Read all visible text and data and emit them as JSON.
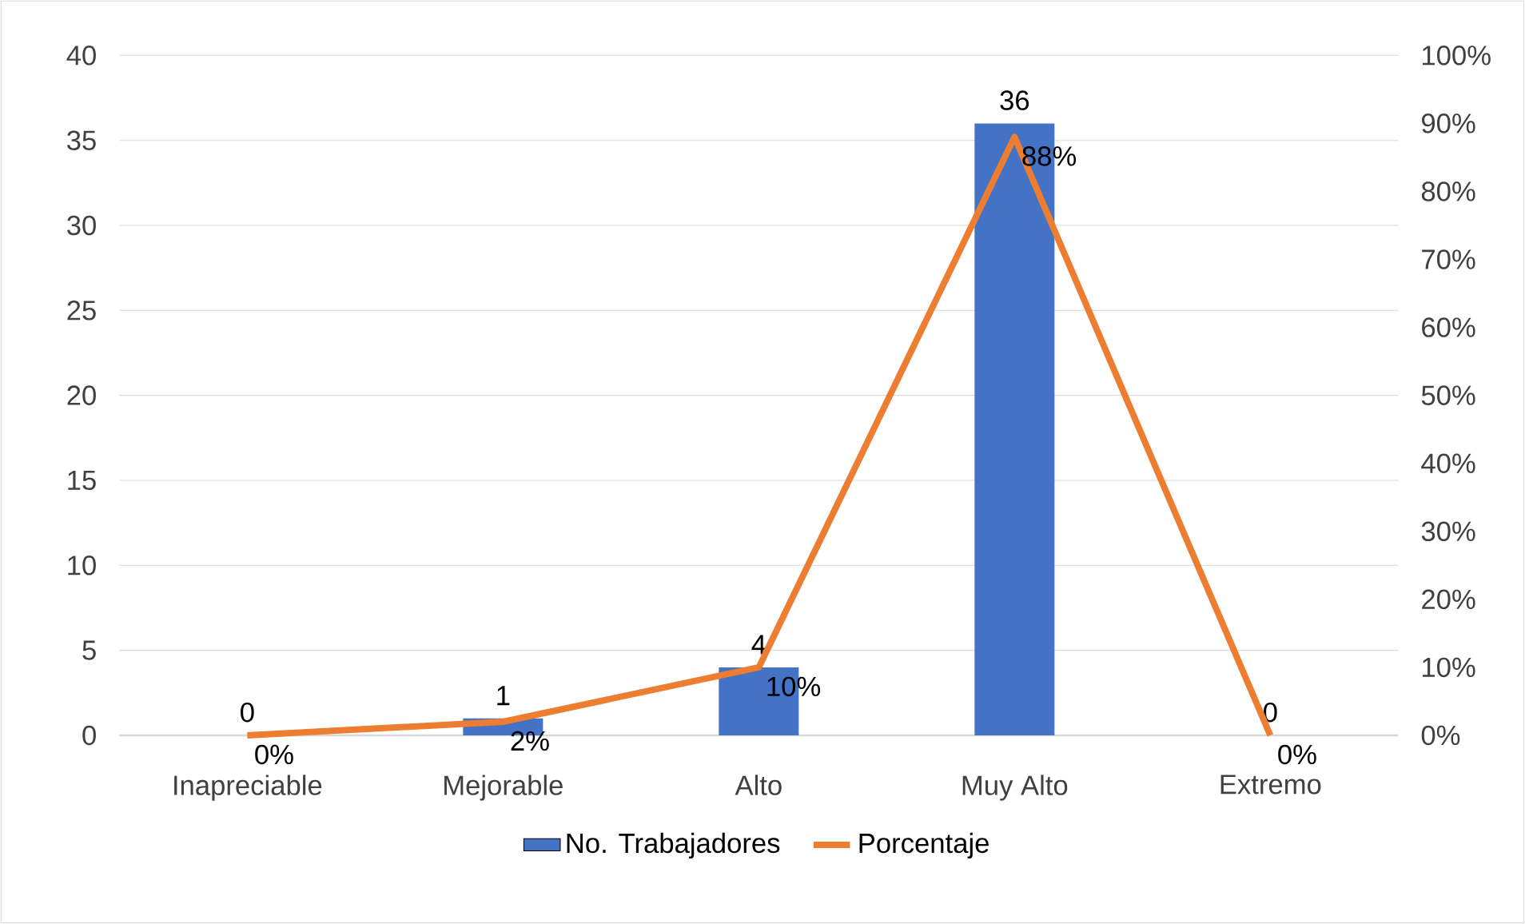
{
  "chart_data": {
    "type": "bar",
    "categories": [
      "Inapreciable",
      "Mejorable",
      "Alto",
      "Muy Alto",
      "Extremo"
    ],
    "series": [
      {
        "name": "No. Trabajadores",
        "color": "#4472c4",
        "values": [
          0,
          1,
          4,
          36,
          0
        ]
      },
      {
        "name": "Porcentaje",
        "type": "line",
        "axis": "y2",
        "color": "#ed7d31",
        "values": [
          0,
          2,
          10,
          88,
          0
        ],
        "value_labels": [
          "0%",
          "2%",
          "10%",
          "88%",
          "0%"
        ]
      }
    ],
    "ylim": [
      0,
      40
    ],
    "yticks": [
      0,
      5,
      10,
      15,
      20,
      25,
      30,
      35,
      40
    ],
    "y2lim": [
      0,
      100
    ],
    "y2ticks": [
      {
        "value": 0,
        "label": "0%"
      },
      {
        "value": 10,
        "label": "10%"
      },
      {
        "value": 20,
        "label": "20%"
      },
      {
        "value": 30,
        "label": "30%"
      },
      {
        "value": 40,
        "label": "40%"
      },
      {
        "value": 50,
        "label": "50%"
      },
      {
        "value": 60,
        "label": "60%"
      },
      {
        "value": 70,
        "label": "70%"
      },
      {
        "value": 80,
        "label": "80%"
      },
      {
        "value": 90,
        "label": "90%"
      },
      {
        "value": 100,
        "label": "100%"
      }
    ],
    "grid": "y",
    "legend": "bottom",
    "data_labels": true
  }
}
